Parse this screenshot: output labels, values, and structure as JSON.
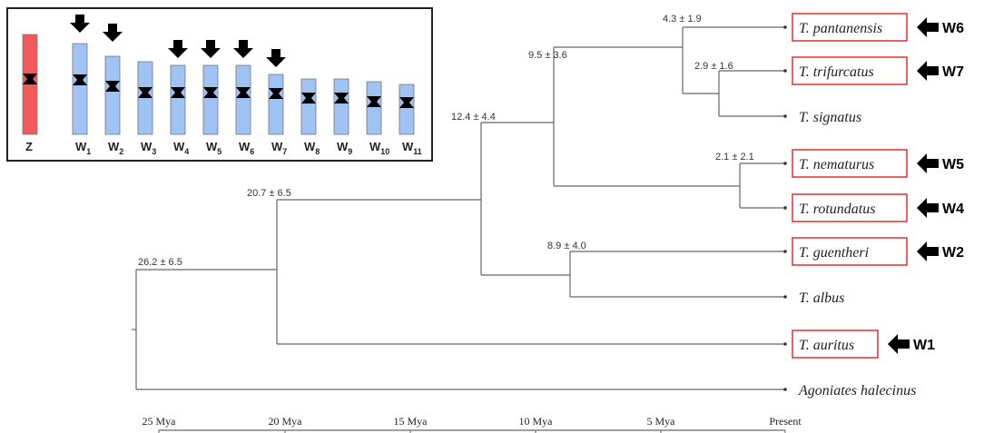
{
  "inset": {
    "chromosomes": [
      {
        "letter": "Z"
      },
      {
        "letter": "W",
        "sub": "1"
      },
      {
        "letter": "W",
        "sub": "2"
      },
      {
        "letter": "W",
        "sub": "3"
      },
      {
        "letter": "W",
        "sub": "4"
      },
      {
        "letter": "W",
        "sub": "5"
      },
      {
        "letter": "W",
        "sub": "6"
      },
      {
        "letter": "W",
        "sub": "7"
      },
      {
        "letter": "W",
        "sub": "8"
      },
      {
        "letter": "W",
        "sub": "9"
      },
      {
        "letter": "W",
        "sub": "10"
      },
      {
        "letter": "W",
        "sub": "11"
      }
    ]
  },
  "nodes": [
    "4.3 ± 1.9",
    "2.9 ± 1.6",
    "9.5  ± 3.6",
    "12.4 ± 4.4",
    "2.1 ± 2.1",
    "20.7  ± 6.5",
    "8.9 ± 4.0",
    "26.2 ± 6.5"
  ],
  "taxa": [
    {
      "name": "T. pantanensis",
      "w": "W6"
    },
    {
      "name": "T. trifurcatus",
      "w": "W7"
    },
    {
      "name": "T. signatus"
    },
    {
      "name": "T. nematurus",
      "w": "W5"
    },
    {
      "name": "T. rotundatus",
      "w": "W4"
    },
    {
      "name": "T. guentheri",
      "w": "W2"
    },
    {
      "name": "T. albus"
    },
    {
      "name": "T. auritus",
      "w": "W1"
    },
    {
      "name": "Agoniates halecinus"
    }
  ],
  "axis": [
    "25 Mya",
    "20 Mya",
    "15 Mya",
    "10 Mya",
    "5 Mya",
    "Present"
  ]
}
